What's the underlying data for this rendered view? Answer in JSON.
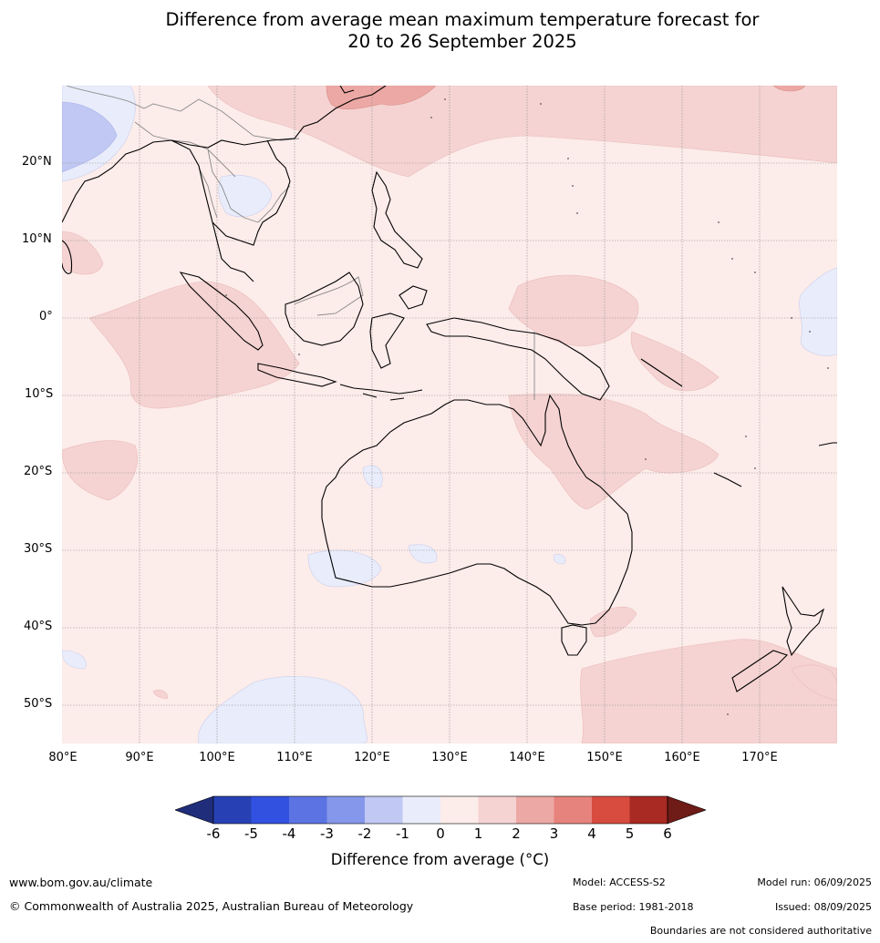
{
  "title": {
    "line1": "Difference from average mean maximum temperature forecast for",
    "line2": "20 to 26 September 2025"
  },
  "map": {
    "lat_labels": [
      "20°N",
      "10°N",
      "0°",
      "10°S",
      "20°S",
      "30°S",
      "40°S",
      "50°S"
    ],
    "lon_labels": [
      "80°E",
      "90°E",
      "100°E",
      "110°E",
      "120°E",
      "130°E",
      "140°E",
      "150°E",
      "160°E",
      "170°E"
    ],
    "extent": {
      "lon_min": 80,
      "lon_max": 180,
      "lat_min": -55,
      "lat_max": 30
    }
  },
  "legend": {
    "ticks": [
      "-6",
      "-5",
      "-4",
      "-3",
      "-2",
      "-1",
      "0",
      "1",
      "2",
      "3",
      "4",
      "5",
      "6"
    ],
    "colors": [
      "#1f2d7a",
      "#2741b4",
      "#3251e0",
      "#5c73e3",
      "#8597ea",
      "#c0c8f3",
      "#e9ecfa",
      "#fcecea",
      "#f5d3d2",
      "#eca8a4",
      "#e6837c",
      "#d84b3f",
      "#a82a22",
      "#6f1b17"
    ],
    "label": "Difference from average (°C)"
  },
  "footer": {
    "website": "www.bom.gov.au/climate",
    "copyright": "© Commonwealth of Australia 2025, Australian Bureau of Meteorology",
    "model": "Model: ACCESS-S2",
    "base_period": "Base period: 1981-2018",
    "model_run": "Model run: 06/09/2025",
    "issued": "Issued: 08/09/2025",
    "disclaimer": "Boundaries are not considered authoritative"
  }
}
